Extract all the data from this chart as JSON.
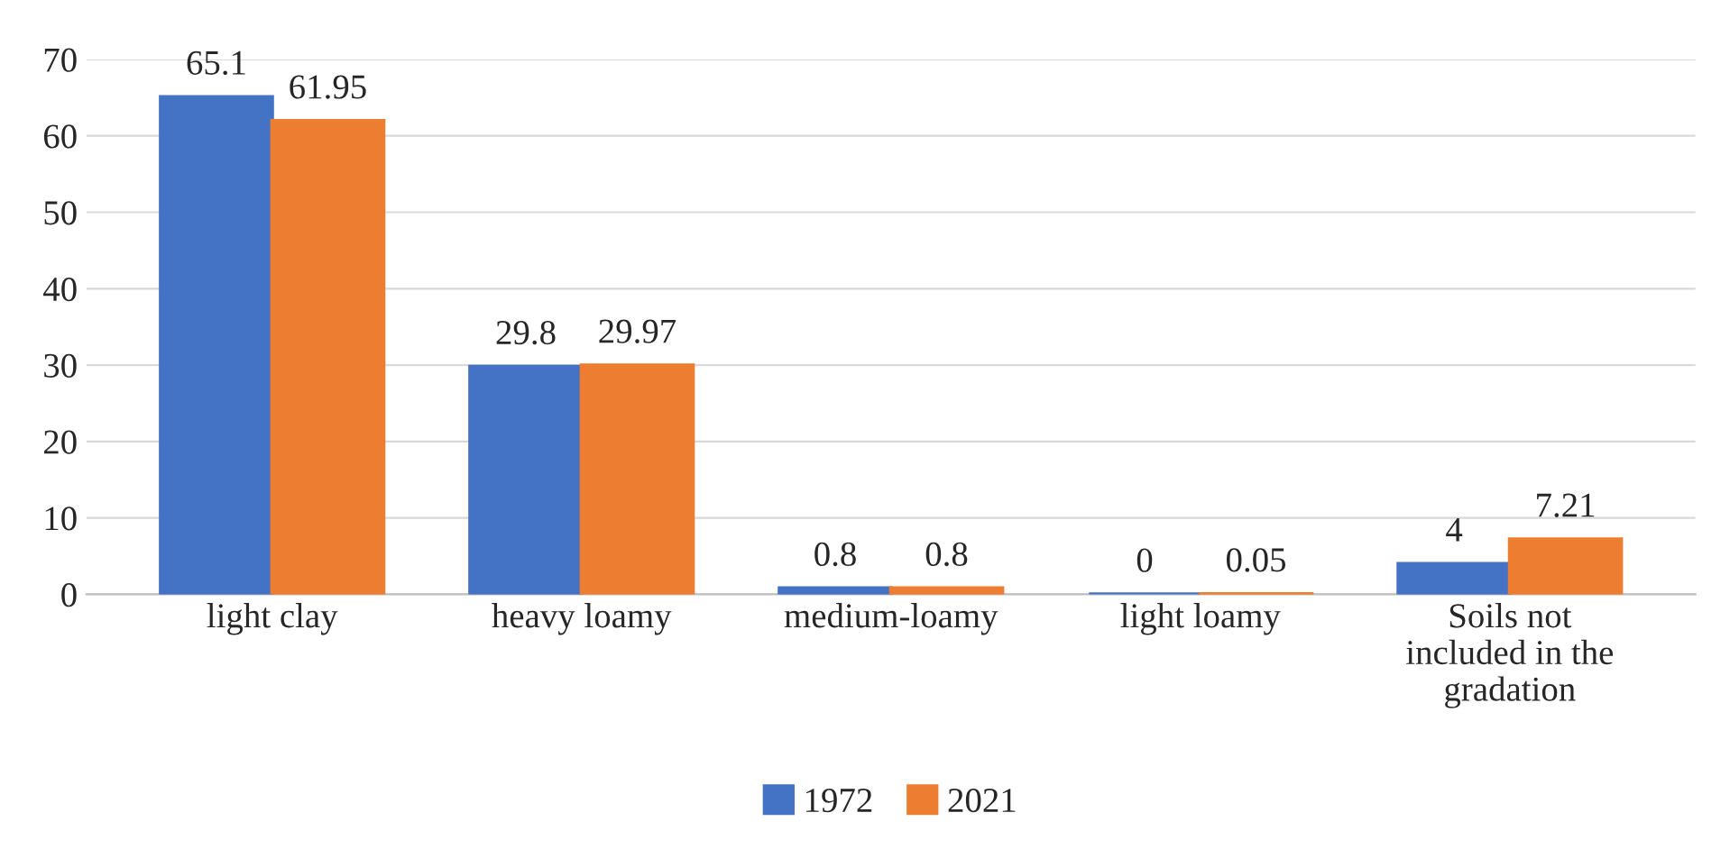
{
  "chart_data": {
    "type": "bar",
    "categories": [
      "light clay",
      "heavy loamy",
      "medium-loamy",
      "light loamy",
      "Soils not included in the gradation"
    ],
    "series": [
      {
        "name": "1972",
        "color": "#4472c4",
        "values": [
          65.1,
          29.8,
          0.8,
          0,
          4
        ]
      },
      {
        "name": "2021",
        "color": "#ed7d31",
        "values": [
          61.95,
          29.97,
          0.8,
          0.05,
          7.21
        ]
      }
    ],
    "ylim": [
      0,
      70
    ],
    "yticks": [
      0,
      10,
      20,
      30,
      40,
      50,
      60,
      70
    ],
    "grid": "y",
    "legend": "bottom",
    "data_labels": true
  }
}
